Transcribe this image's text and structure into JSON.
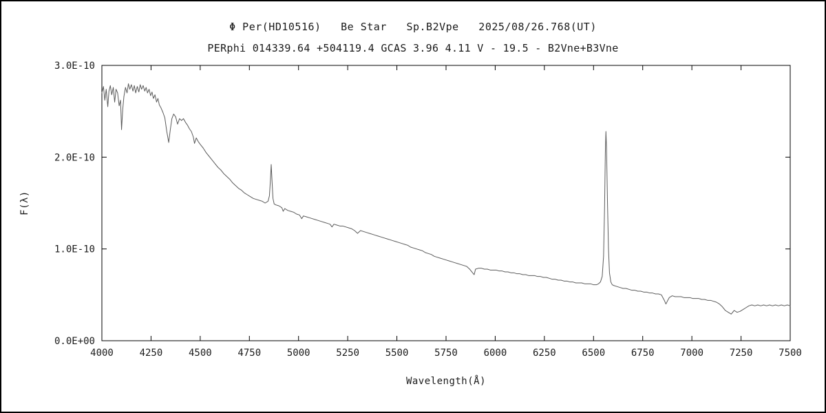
{
  "chart_data": {
    "type": "line",
    "title": "Φ Per(HD10516)   Be Star   Sp.B2Vpe   2025/08/26.768(UT)",
    "subtitle": "PERphi 014339.64 +504119.4 GCAS 3.96 4.11 V - 19.5 - B2Vne+B3Vne",
    "xlabel": "Wavelength(Å)",
    "ylabel": "F(λ)",
    "xlim": [
      4000,
      7500
    ],
    "ylim": [
      0,
      3.0
    ],
    "flux_scale": "1E-10",
    "grid": false,
    "legend": "none",
    "line_color": "#5a5a5a",
    "axis_color": "#000000",
    "x_ticks": {
      "values": [
        4000,
        4250,
        4500,
        4750,
        5000,
        5250,
        5500,
        5750,
        6000,
        6250,
        6500,
        6750,
        7000,
        7250,
        7500
      ],
      "labels": [
        "4000",
        "4250",
        "4500",
        "4750",
        "5000",
        "5250",
        "5500",
        "5750",
        "6000",
        "6250",
        "6500",
        "6750",
        "7000",
        "7250",
        "7500"
      ]
    },
    "y_ticks": {
      "values": [
        0,
        1,
        2,
        3
      ],
      "labels": [
        "0.0E+00",
        "1.0E-10",
        "2.0E-10",
        "3.0E-10"
      ]
    },
    "series": [
      {
        "name": "spectrum",
        "points": [
          [
            4000,
            2.7
          ],
          [
            4008,
            2.77
          ],
          [
            4015,
            2.62
          ],
          [
            4022,
            2.74
          ],
          [
            4030,
            2.55
          ],
          [
            4036,
            2.72
          ],
          [
            4043,
            2.78
          ],
          [
            4050,
            2.68
          ],
          [
            4058,
            2.76
          ],
          [
            4065,
            2.6
          ],
          [
            4072,
            2.74
          ],
          [
            4080,
            2.7
          ],
          [
            4088,
            2.56
          ],
          [
            4095,
            2.62
          ],
          [
            4100,
            2.3
          ],
          [
            4106,
            2.52
          ],
          [
            4112,
            2.66
          ],
          [
            4120,
            2.76
          ],
          [
            4128,
            2.7
          ],
          [
            4135,
            2.8
          ],
          [
            4142,
            2.74
          ],
          [
            4150,
            2.79
          ],
          [
            4158,
            2.72
          ],
          [
            4165,
            2.78
          ],
          [
            4172,
            2.7
          ],
          [
            4180,
            2.77
          ],
          [
            4188,
            2.71
          ],
          [
            4195,
            2.79
          ],
          [
            4202,
            2.74
          ],
          [
            4210,
            2.78
          ],
          [
            4218,
            2.72
          ],
          [
            4225,
            2.76
          ],
          [
            4232,
            2.7
          ],
          [
            4240,
            2.74
          ],
          [
            4248,
            2.67
          ],
          [
            4255,
            2.71
          ],
          [
            4262,
            2.64
          ],
          [
            4270,
            2.68
          ],
          [
            4278,
            2.6
          ],
          [
            4285,
            2.64
          ],
          [
            4292,
            2.57
          ],
          [
            4300,
            2.54
          ],
          [
            4310,
            2.49
          ],
          [
            4320,
            2.43
          ],
          [
            4330,
            2.28
          ],
          [
            4340,
            2.16
          ],
          [
            4348,
            2.3
          ],
          [
            4356,
            2.42
          ],
          [
            4365,
            2.47
          ],
          [
            4375,
            2.44
          ],
          [
            4385,
            2.36
          ],
          [
            4395,
            2.42
          ],
          [
            4405,
            2.4
          ],
          [
            4415,
            2.42
          ],
          [
            4425,
            2.38
          ],
          [
            4435,
            2.35
          ],
          [
            4445,
            2.31
          ],
          [
            4455,
            2.28
          ],
          [
            4465,
            2.22
          ],
          [
            4471,
            2.15
          ],
          [
            4480,
            2.21
          ],
          [
            4490,
            2.17
          ],
          [
            4500,
            2.14
          ],
          [
            4515,
            2.1
          ],
          [
            4530,
            2.05
          ],
          [
            4545,
            2.01
          ],
          [
            4560,
            1.97
          ],
          [
            4575,
            1.93
          ],
          [
            4590,
            1.89
          ],
          [
            4605,
            1.86
          ],
          [
            4620,
            1.82
          ],
          [
            4635,
            1.79
          ],
          [
            4650,
            1.76
          ],
          [
            4665,
            1.72
          ],
          [
            4680,
            1.69
          ],
          [
            4695,
            1.66
          ],
          [
            4710,
            1.64
          ],
          [
            4725,
            1.61
          ],
          [
            4740,
            1.59
          ],
          [
            4755,
            1.57
          ],
          [
            4770,
            1.55
          ],
          [
            4785,
            1.54
          ],
          [
            4800,
            1.53
          ],
          [
            4815,
            1.52
          ],
          [
            4830,
            1.5
          ],
          [
            4845,
            1.52
          ],
          [
            4852,
            1.58
          ],
          [
            4857,
            1.75
          ],
          [
            4861,
            1.92
          ],
          [
            4865,
            1.75
          ],
          [
            4870,
            1.55
          ],
          [
            4876,
            1.49
          ],
          [
            4885,
            1.48
          ],
          [
            4900,
            1.47
          ],
          [
            4915,
            1.45
          ],
          [
            4922,
            1.41
          ],
          [
            4930,
            1.44
          ],
          [
            4945,
            1.42
          ],
          [
            4960,
            1.41
          ],
          [
            4975,
            1.4
          ],
          [
            4990,
            1.38
          ],
          [
            5005,
            1.37
          ],
          [
            5016,
            1.33
          ],
          [
            5025,
            1.36
          ],
          [
            5040,
            1.35
          ],
          [
            5055,
            1.34
          ],
          [
            5070,
            1.33
          ],
          [
            5085,
            1.32
          ],
          [
            5100,
            1.31
          ],
          [
            5115,
            1.3
          ],
          [
            5130,
            1.29
          ],
          [
            5145,
            1.28
          ],
          [
            5160,
            1.27
          ],
          [
            5170,
            1.24
          ],
          [
            5180,
            1.27
          ],
          [
            5195,
            1.26
          ],
          [
            5210,
            1.25
          ],
          [
            5225,
            1.25
          ],
          [
            5240,
            1.24
          ],
          [
            5255,
            1.23
          ],
          [
            5270,
            1.22
          ],
          [
            5285,
            1.2
          ],
          [
            5300,
            1.17
          ],
          [
            5315,
            1.2
          ],
          [
            5330,
            1.19
          ],
          [
            5345,
            1.18
          ],
          [
            5360,
            1.17
          ],
          [
            5375,
            1.16
          ],
          [
            5390,
            1.15
          ],
          [
            5405,
            1.14
          ],
          [
            5420,
            1.13
          ],
          [
            5435,
            1.12
          ],
          [
            5450,
            1.11
          ],
          [
            5465,
            1.1
          ],
          [
            5480,
            1.09
          ],
          [
            5495,
            1.08
          ],
          [
            5510,
            1.07
          ],
          [
            5525,
            1.06
          ],
          [
            5540,
            1.05
          ],
          [
            5555,
            1.04
          ],
          [
            5570,
            1.02
          ],
          [
            5585,
            1.01
          ],
          [
            5600,
            1.0
          ],
          [
            5615,
            0.99
          ],
          [
            5630,
            0.98
          ],
          [
            5645,
            0.96
          ],
          [
            5660,
            0.95
          ],
          [
            5675,
            0.94
          ],
          [
            5690,
            0.92
          ],
          [
            5705,
            0.91
          ],
          [
            5720,
            0.9
          ],
          [
            5735,
            0.89
          ],
          [
            5750,
            0.88
          ],
          [
            5765,
            0.87
          ],
          [
            5780,
            0.86
          ],
          [
            5795,
            0.85
          ],
          [
            5810,
            0.84
          ],
          [
            5825,
            0.83
          ],
          [
            5840,
            0.82
          ],
          [
            5855,
            0.81
          ],
          [
            5870,
            0.78
          ],
          [
            5885,
            0.74
          ],
          [
            5893,
            0.72
          ],
          [
            5900,
            0.78
          ],
          [
            5915,
            0.79
          ],
          [
            5930,
            0.79
          ],
          [
            5945,
            0.78
          ],
          [
            5960,
            0.78
          ],
          [
            5975,
            0.77
          ],
          [
            5990,
            0.77
          ],
          [
            6005,
            0.77
          ],
          [
            6020,
            0.76
          ],
          [
            6035,
            0.76
          ],
          [
            6050,
            0.75
          ],
          [
            6065,
            0.75
          ],
          [
            6080,
            0.74
          ],
          [
            6095,
            0.74
          ],
          [
            6110,
            0.73
          ],
          [
            6125,
            0.73
          ],
          [
            6140,
            0.72
          ],
          [
            6155,
            0.72
          ],
          [
            6170,
            0.71
          ],
          [
            6185,
            0.71
          ],
          [
            6200,
            0.71
          ],
          [
            6215,
            0.7
          ],
          [
            6230,
            0.7
          ],
          [
            6245,
            0.69
          ],
          [
            6260,
            0.69
          ],
          [
            6275,
            0.68
          ],
          [
            6290,
            0.67
          ],
          [
            6305,
            0.67
          ],
          [
            6320,
            0.66
          ],
          [
            6335,
            0.66
          ],
          [
            6350,
            0.65
          ],
          [
            6365,
            0.65
          ],
          [
            6380,
            0.64
          ],
          [
            6395,
            0.64
          ],
          [
            6410,
            0.63
          ],
          [
            6425,
            0.63
          ],
          [
            6440,
            0.63
          ],
          [
            6455,
            0.62
          ],
          [
            6470,
            0.62
          ],
          [
            6485,
            0.62
          ],
          [
            6500,
            0.61
          ],
          [
            6515,
            0.61
          ],
          [
            6525,
            0.62
          ],
          [
            6535,
            0.64
          ],
          [
            6544,
            0.7
          ],
          [
            6551,
            0.92
          ],
          [
            6556,
            1.45
          ],
          [
            6560,
            2.05
          ],
          [
            6563,
            2.28
          ],
          [
            6566,
            2.1
          ],
          [
            6571,
            1.5
          ],
          [
            6576,
            1.0
          ],
          [
            6581,
            0.74
          ],
          [
            6588,
            0.64
          ],
          [
            6595,
            0.61
          ],
          [
            6605,
            0.6
          ],
          [
            6620,
            0.59
          ],
          [
            6635,
            0.58
          ],
          [
            6650,
            0.57
          ],
          [
            6665,
            0.57
          ],
          [
            6680,
            0.56
          ],
          [
            6695,
            0.55
          ],
          [
            6710,
            0.55
          ],
          [
            6725,
            0.54
          ],
          [
            6740,
            0.54
          ],
          [
            6755,
            0.53
          ],
          [
            6770,
            0.53
          ],
          [
            6785,
            0.52
          ],
          [
            6800,
            0.52
          ],
          [
            6815,
            0.51
          ],
          [
            6830,
            0.51
          ],
          [
            6845,
            0.5
          ],
          [
            6860,
            0.44
          ],
          [
            6868,
            0.4
          ],
          [
            6875,
            0.43
          ],
          [
            6885,
            0.47
          ],
          [
            6900,
            0.49
          ],
          [
            6915,
            0.48
          ],
          [
            6930,
            0.48
          ],
          [
            6945,
            0.48
          ],
          [
            6960,
            0.47
          ],
          [
            6975,
            0.47
          ],
          [
            6990,
            0.47
          ],
          [
            7005,
            0.46
          ],
          [
            7020,
            0.46
          ],
          [
            7035,
            0.46
          ],
          [
            7050,
            0.45
          ],
          [
            7065,
            0.45
          ],
          [
            7080,
            0.44
          ],
          [
            7095,
            0.44
          ],
          [
            7110,
            0.43
          ],
          [
            7125,
            0.42
          ],
          [
            7140,
            0.4
          ],
          [
            7155,
            0.37
          ],
          [
            7170,
            0.33
          ],
          [
            7185,
            0.31
          ],
          [
            7200,
            0.29
          ],
          [
            7215,
            0.33
          ],
          [
            7230,
            0.31
          ],
          [
            7245,
            0.32
          ],
          [
            7260,
            0.34
          ],
          [
            7275,
            0.36
          ],
          [
            7290,
            0.38
          ],
          [
            7305,
            0.39
          ],
          [
            7320,
            0.38
          ],
          [
            7335,
            0.39
          ],
          [
            7350,
            0.38
          ],
          [
            7365,
            0.39
          ],
          [
            7380,
            0.38
          ],
          [
            7395,
            0.39
          ],
          [
            7410,
            0.38
          ],
          [
            7425,
            0.39
          ],
          [
            7440,
            0.38
          ],
          [
            7455,
            0.39
          ],
          [
            7470,
            0.38
          ],
          [
            7485,
            0.39
          ],
          [
            7500,
            0.38
          ]
        ]
      }
    ]
  }
}
